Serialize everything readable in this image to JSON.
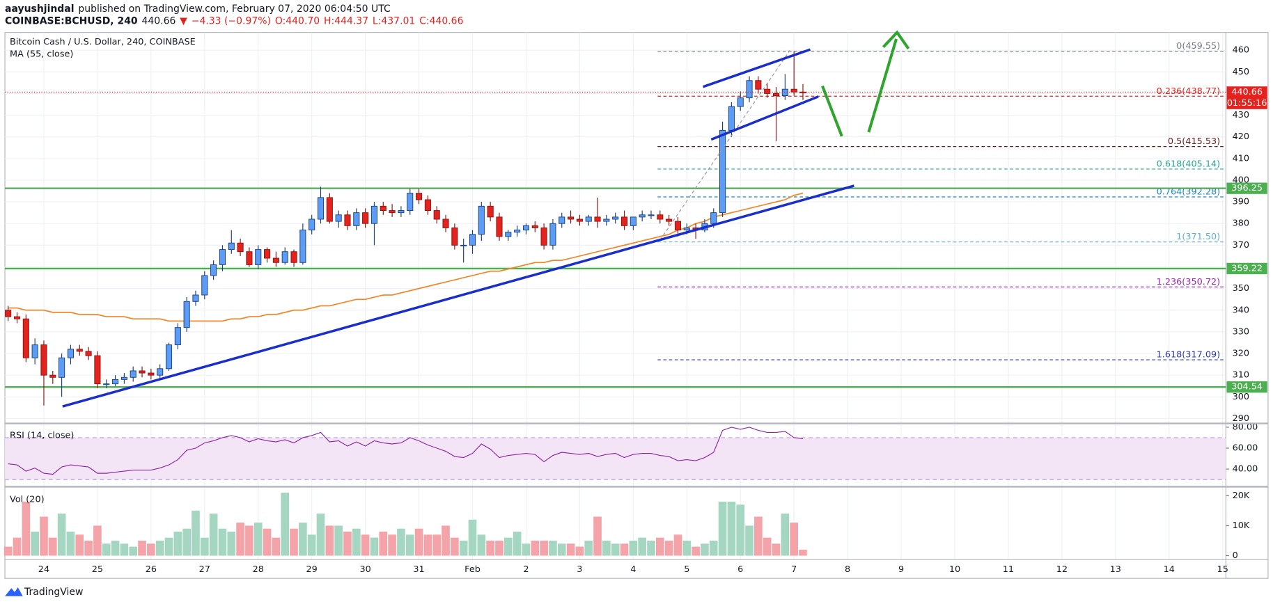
{
  "header": {
    "author": "aayushjindal",
    "published": "published on TradingView.com, February 07, 2020 06:04:50 UTC",
    "symbol": "COINBASE:BCHUSD, 240",
    "last": "440.66",
    "arrow": "▼",
    "change": "−4.33 (−0.97%)",
    "ohlc": [
      "O:440.70",
      "H:444.37",
      "L:437.01",
      "C:440.66"
    ],
    "brand": "TradingView"
  },
  "chart_data": {
    "type": "candlestick",
    "title": "Bitcoin Cash / U.S. Dollar, 240, COINBASE",
    "open": [
      340,
      337,
      336,
      318,
      324,
      310,
      309,
      318,
      322,
      321,
      319,
      306,
      306,
      308,
      309,
      312,
      311,
      310,
      313,
      324,
      332,
      344,
      347,
      356,
      361,
      368,
      371,
      367,
      361,
      368,
      364,
      362,
      367,
      362,
      377,
      382,
      392,
      381,
      384,
      379,
      385,
      380,
      388,
      386,
      385,
      386,
      394,
      391,
      386,
      382,
      378,
      370,
      370,
      375,
      388,
      383,
      374,
      376,
      377,
      379,
      378,
      370,
      380,
      383,
      382,
      381,
      383,
      381,
      382,
      383,
      379,
      383,
      384,
      384,
      382,
      381,
      377,
      378,
      377,
      380,
      385,
      423,
      434,
      438,
      446,
      442,
      440,
      439,
      442,
      440.7
    ],
    "high": [
      342,
      339,
      338,
      327,
      326,
      312,
      320,
      324,
      324,
      323,
      321,
      308,
      310,
      311,
      314,
      314,
      313,
      315,
      325,
      334,
      346,
      349,
      358,
      363,
      370,
      377,
      373,
      369,
      370,
      369,
      367,
      369,
      368,
      380,
      384,
      397,
      394,
      386,
      386,
      387,
      387,
      390,
      390,
      389,
      388,
      396,
      396,
      393,
      388,
      384,
      380,
      373,
      377,
      390,
      390,
      385,
      377,
      379,
      380,
      381,
      380,
      382,
      385,
      386,
      384,
      384,
      392,
      384,
      385,
      386,
      383,
      386,
      386,
      386,
      384,
      383,
      380,
      380,
      382,
      387,
      427,
      436,
      441,
      448,
      448,
      445,
      443,
      449,
      459.55,
      444.37
    ],
    "low": [
      335,
      334,
      316,
      315,
      296,
      306,
      300,
      315,
      319,
      317,
      304,
      304,
      305,
      306,
      307,
      309,
      308,
      308,
      312,
      322,
      330,
      342,
      345,
      354,
      358,
      366,
      365,
      360,
      359,
      362,
      360,
      361,
      360,
      361,
      375,
      380,
      380,
      378,
      377,
      377,
      378,
      370,
      384,
      383,
      383,
      384,
      389,
      384,
      380,
      376,
      368,
      362,
      366,
      372,
      381,
      372,
      372,
      374,
      375,
      376,
      368,
      368,
      378,
      380,
      379,
      379,
      378,
      379,
      380,
      377,
      377,
      381,
      382,
      380,
      379,
      374,
      375,
      373,
      376,
      378,
      383,
      420,
      432,
      436,
      440,
      438,
      418,
      437,
      439,
      437.01
    ],
    "close": [
      337,
      336,
      318,
      324,
      310,
      309,
      318,
      322,
      321,
      319,
      306,
      306,
      308,
      309,
      312,
      311,
      310,
      313,
      324,
      332,
      344,
      347,
      356,
      361,
      368,
      371,
      367,
      361,
      368,
      364,
      362,
      367,
      362,
      377,
      382,
      392,
      381,
      384,
      379,
      385,
      380,
      388,
      386,
      385,
      386,
      394,
      391,
      386,
      382,
      378,
      370,
      370,
      375,
      388,
      383,
      374,
      376,
      377,
      379,
      378,
      370,
      380,
      383,
      382,
      381,
      383,
      381,
      382,
      383,
      379,
      383,
      384,
      384,
      382,
      381,
      377,
      378,
      377,
      380,
      385,
      423,
      434,
      438,
      446,
      442,
      440,
      439,
      442,
      440.7,
      440.66
    ],
    "up_color": "#5b9cf6",
    "up_border": "#1c3f7a",
    "down_color": "#e5231e",
    "down_border": "#8a1410",
    "ylim": [
      288.1,
      468.2
    ],
    "yticks": [
      290,
      300,
      310,
      320,
      330,
      340,
      350,
      360,
      370,
      380,
      390,
      400,
      410,
      420,
      430,
      440,
      450,
      460
    ],
    "xlim": [
      -0.36,
      136.36
    ],
    "xticks": [
      {
        "value": 4,
        "label": "24"
      },
      {
        "value": 10,
        "label": "25"
      },
      {
        "value": 16,
        "label": "26"
      },
      {
        "value": 22,
        "label": "27"
      },
      {
        "value": 28,
        "label": "28"
      },
      {
        "value": 34,
        "label": "29"
      },
      {
        "value": 40,
        "label": "30"
      },
      {
        "value": 46,
        "label": "31"
      },
      {
        "value": 52,
        "label": "Feb"
      },
      {
        "value": 58,
        "label": "2"
      },
      {
        "value": 64,
        "label": "3"
      },
      {
        "value": 70,
        "label": "4"
      },
      {
        "value": 76,
        "label": "5"
      },
      {
        "value": 82,
        "label": "6"
      },
      {
        "value": 88,
        "label": "7"
      },
      {
        "value": 94,
        "label": "8"
      },
      {
        "value": 100,
        "label": "9"
      },
      {
        "value": 106,
        "label": "10"
      },
      {
        "value": 112,
        "label": "11"
      },
      {
        "value": 118,
        "label": "12"
      },
      {
        "value": 124,
        "label": "13"
      },
      {
        "value": 130,
        "label": "14"
      },
      {
        "value": 136,
        "label": "15"
      }
    ],
    "grid": true,
    "ma": {
      "label": "MA (55, close)",
      "color": "#f0892b",
      "values": [
        341,
        341,
        340,
        340,
        340,
        339,
        339,
        339,
        338,
        338,
        338,
        337,
        337,
        337,
        336,
        336,
        336,
        336,
        335,
        335,
        335,
        335,
        335,
        335,
        335,
        336,
        336,
        337,
        337,
        338,
        338,
        339,
        340,
        340,
        341,
        342,
        342,
        343,
        344,
        345,
        345,
        346,
        347,
        347,
        348,
        349,
        350,
        351,
        352,
        353,
        354,
        355,
        356,
        357,
        358,
        358,
        359,
        360,
        361,
        362,
        362,
        363,
        363,
        364,
        365,
        366,
        367,
        368,
        369,
        370,
        371,
        372,
        373,
        374,
        375,
        377,
        378,
        380,
        381,
        383,
        384,
        385,
        386,
        387,
        388,
        389,
        390,
        391,
        393,
        394
      ]
    },
    "levels": [
      {
        "value": 396.25,
        "label": "396.25"
      },
      {
        "value": 359.22,
        "label": "359.22"
      },
      {
        "value": 304.54,
        "label": "304.54"
      }
    ],
    "level_color": "#4caf50",
    "last_price": {
      "value": 440.66,
      "label": "440.66"
    },
    "countdown": "01:55:16",
    "last_color": "#e5231e",
    "fibs": [
      {
        "value": 459.55,
        "label": "0(459.55)",
        "color": "#787b86"
      },
      {
        "value": 438.77,
        "label": "0.236(438.77)",
        "color": "#e5231e"
      },
      {
        "value": 415.53,
        "label": "0.5(415.53)",
        "color": "#6d1b1b"
      },
      {
        "value": 405.14,
        "label": "0.618(405.14)",
        "color": "#26a69a"
      },
      {
        "value": 392.28,
        "label": "0.764(392.28)",
        "color": "#1e88c5"
      },
      {
        "value": 371.5,
        "label": "1(371.50)",
        "color": "#5bb0dc"
      },
      {
        "value": 350.72,
        "label": "1.236(350.72)",
        "color": "#9c27b0"
      },
      {
        "value": 317.09,
        "label": "1.618(317.09)",
        "color": "#2c3aa8"
      }
    ],
    "rsi": {
      "label": "RSI (14, close)",
      "color": "#8e24aa",
      "band": [
        30,
        70
      ],
      "band_color": "#f3e5f5",
      "ylim": [
        24.7,
        83.6
      ],
      "yticks": [
        {
          "value": 40,
          "label": "40.00"
        },
        {
          "value": 60,
          "label": "60.00"
        },
        {
          "value": 80,
          "label": "80.00"
        }
      ],
      "values": [
        45,
        44,
        38,
        41,
        36,
        35,
        42,
        44,
        43,
        42,
        36,
        36,
        37,
        38,
        39,
        39,
        39,
        41,
        44,
        49,
        58,
        60,
        65,
        67,
        70,
        72,
        70,
        66,
        69,
        67,
        66,
        68,
        65,
        70,
        72,
        75,
        66,
        67,
        62,
        66,
        62,
        67,
        65,
        64,
        65,
        70,
        67,
        63,
        60,
        57,
        52,
        51,
        55,
        64,
        59,
        51,
        53,
        54,
        55,
        54,
        47,
        53,
        56,
        55,
        54,
        55,
        52,
        54,
        55,
        51,
        54,
        55,
        55,
        53,
        52,
        48,
        49,
        48,
        51,
        56,
        77,
        80,
        78,
        80,
        77,
        75,
        75,
        76,
        70,
        69
      ]
    },
    "volume": {
      "label": "Vol (20)",
      "up_color": "#a5d6c1",
      "down_color": "#f4a3a8",
      "ylim": [
        -1351,
        22973
      ],
      "yticks": [
        {
          "value": 0,
          "label": "0"
        },
        {
          "value": 10000,
          "label": "10K"
        },
        {
          "value": 20000,
          "label": "20K"
        }
      ],
      "values": [
        3000,
        6000,
        18000,
        8000,
        13000,
        6000,
        14000,
        8000,
        7000,
        5000,
        10000,
        4000,
        5000,
        4000,
        3000,
        5000,
        4000,
        5000,
        6000,
        8000,
        9000,
        15000,
        6000,
        14000,
        9000,
        8000,
        11000,
        10000,
        11000,
        9000,
        6000,
        21000,
        9000,
        11000,
        7000,
        14000,
        10000,
        10000,
        8000,
        9000,
        7000,
        6000,
        8000,
        7000,
        9000,
        7000,
        9000,
        7000,
        7000,
        10000,
        6000,
        5000,
        12000,
        7000,
        5000,
        5000,
        6000,
        8000,
        4000,
        5000,
        5000,
        5000,
        4000,
        4000,
        3000,
        5000,
        13000,
        5000,
        4000,
        4000,
        5000,
        6000,
        5000,
        6000,
        5000,
        7000,
        5000,
        3000,
        4000,
        5000,
        18000,
        18000,
        17000,
        10000,
        13000,
        6000,
        4000,
        14000,
        11000,
        2000
      ]
    }
  }
}
